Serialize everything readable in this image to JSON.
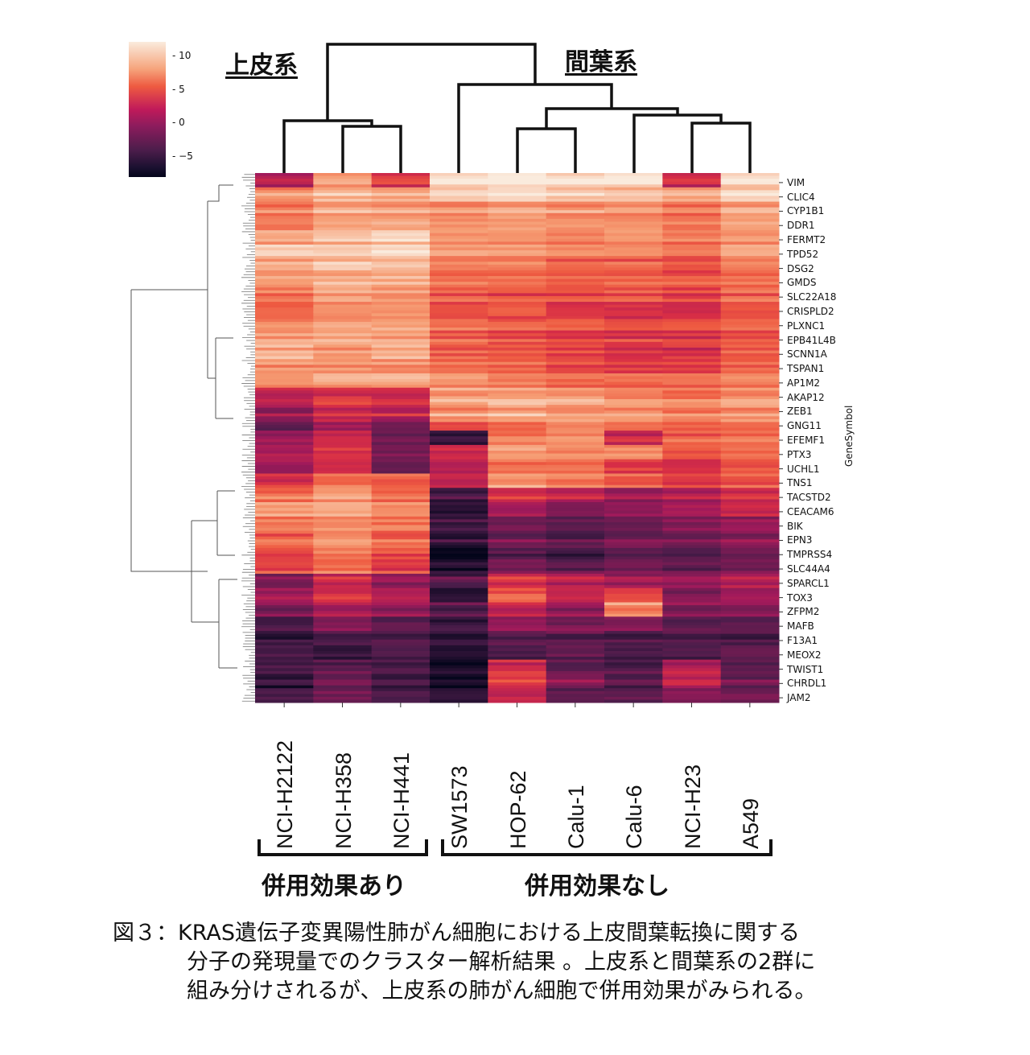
{
  "titles": {
    "epithelial": "上皮系",
    "mesenchymal": "間葉系"
  },
  "effect_labels": {
    "with_effect": "併用効果あり",
    "no_effect": "併用効果なし"
  },
  "caption": {
    "line1": "図３：KRAS遺伝子変異陽性肺がん細胞における上皮間葉転換に関する",
    "line2": "分子の発現量でのクラスター解析結果 。上皮系と間葉系の2群に",
    "line3": "組み分けされるが、上皮系の肺がん細胞で併用効果がみられる。"
  },
  "chart_data": {
    "type": "heatmap",
    "ylabel": "GeneSymbol",
    "colormap": "rocket",
    "value_range": [
      -8,
      12.2
    ],
    "colorbar_ticks": [
      "10",
      "5",
      "0",
      "−5"
    ],
    "colorbar_tick_values": [
      10,
      5,
      0,
      -5
    ],
    "columns": [
      "NCI-H2122",
      "NCI-H358",
      "NCI-H441",
      "SW1573",
      "HOP-62",
      "Calu-1",
      "Calu-6",
      "NCI-H23",
      "A549"
    ],
    "rows": [
      "VIM",
      "CLIC4",
      "CYP1B1",
      "DDR1",
      "FERMT2",
      "TPD52",
      "DSG2",
      "GMDS",
      "SLC22A18",
      "CRISPLD2",
      "PLXNC1",
      "EPB41L4B",
      "SCNN1A",
      "TSPAN1",
      "AP1M2",
      "AKAP12",
      "ZEB1",
      "GNG11",
      "EFEMF1",
      "PTX3",
      "UCHL1",
      "TNS1",
      "TACSTD2",
      "CEACAM6",
      "BIK",
      "EPN3",
      "TMPRSS4",
      "SLC44A4",
      "SPARCL1",
      "TOX3",
      "ZFPM2",
      "MAFB",
      "F13A1",
      "MEOX2",
      "TWIST1",
      "CHRDL1",
      "JAM2"
    ],
    "values": [
      [
        0,
        8,
        3,
        11,
        12,
        11,
        11,
        2,
        11
      ],
      [
        8,
        10,
        9,
        11,
        12,
        11,
        10,
        9,
        11
      ],
      [
        7,
        9,
        9,
        8,
        9,
        8,
        8,
        7,
        9
      ],
      [
        6,
        8,
        8,
        7,
        8,
        7,
        7,
        6,
        8
      ],
      [
        8,
        9,
        10,
        7,
        7,
        6,
        7,
        6,
        7
      ],
      [
        10,
        10,
        11,
        8,
        8,
        7,
        7,
        6,
        8
      ],
      [
        9,
        10,
        10,
        7,
        7,
        6,
        6,
        5,
        7
      ],
      [
        8,
        9,
        9,
        6,
        6,
        5,
        6,
        5,
        6
      ],
      [
        7,
        9,
        8,
        6,
        5,
        5,
        5,
        4,
        6
      ],
      [
        6,
        8,
        8,
        5,
        6,
        4,
        4,
        3,
        5
      ],
      [
        7,
        8,
        8,
        6,
        5,
        5,
        4,
        4,
        6
      ],
      [
        9,
        9,
        9,
        6,
        5,
        4,
        4,
        4,
        5
      ],
      [
        9,
        8,
        9,
        5,
        5,
        4,
        3,
        3,
        5
      ],
      [
        8,
        8,
        8,
        6,
        6,
        5,
        4,
        4,
        6
      ],
      [
        7,
        8,
        8,
        7,
        6,
        5,
        5,
        5,
        6
      ],
      [
        2,
        4,
        3,
        9,
        9,
        9,
        8,
        7,
        8
      ],
      [
        0,
        3,
        2,
        8,
        9,
        8,
        8,
        7,
        8
      ],
      [
        -2,
        1,
        -1,
        6,
        7,
        8,
        7,
        6,
        7
      ],
      [
        -1,
        2,
        -3,
        -6,
        6,
        7,
        2,
        5,
        6
      ],
      [
        0,
        3,
        -2,
        2,
        8,
        7,
        7,
        5,
        6
      ],
      [
        1,
        4,
        -1,
        3,
        7,
        7,
        5,
        4,
        6
      ],
      [
        3,
        6,
        5,
        2,
        8,
        7,
        5,
        4,
        5
      ],
      [
        6,
        8,
        6,
        -5,
        3,
        2,
        0,
        1,
        3
      ],
      [
        8,
        9,
        7,
        -6,
        0,
        -2,
        -1,
        0,
        2
      ],
      [
        7,
        8,
        7,
        -4,
        -2,
        -3,
        -2,
        -1,
        0
      ],
      [
        6,
        8,
        6,
        -5,
        -2,
        -3,
        -2,
        -2,
        -1
      ],
      [
        5,
        7,
        5,
        -7,
        -3,
        -4,
        -3,
        -3,
        -2
      ],
      [
        4,
        6,
        4,
        -6,
        -2,
        -3,
        -2,
        -3,
        -2
      ],
      [
        -2,
        2,
        -1,
        -4,
        3,
        1,
        0,
        -1,
        1
      ],
      [
        0,
        3,
        1,
        -6,
        5,
        2,
        4,
        -2,
        0
      ],
      [
        -1,
        1,
        0,
        -3,
        2,
        0,
        8,
        -1,
        -1
      ],
      [
        -3,
        0,
        -2,
        -4,
        1,
        -1,
        0,
        -2,
        -2
      ],
      [
        -5,
        -4,
        -4,
        -5,
        -3,
        -3,
        -4,
        -4,
        -4
      ],
      [
        -5,
        -6,
        -5,
        -7,
        -5,
        -4,
        -5,
        -5,
        -4
      ],
      [
        -4,
        -3,
        -4,
        -7,
        3,
        -3,
        -4,
        1,
        -3
      ],
      [
        -5,
        -2,
        -4,
        -7,
        4,
        -1,
        -3,
        2,
        -2
      ],
      [
        -5,
        -3,
        -5,
        -6,
        1,
        -4,
        -4,
        -2,
        -3
      ]
    ],
    "column_groups": [
      {
        "label": "上皮系",
        "columns": [
          "NCI-H2122",
          "NCI-H358",
          "NCI-H441"
        ]
      },
      {
        "label": "間葉系",
        "columns": [
          "SW1573",
          "HOP-62",
          "Calu-1",
          "Calu-6",
          "NCI-H23",
          "A549"
        ]
      }
    ]
  }
}
